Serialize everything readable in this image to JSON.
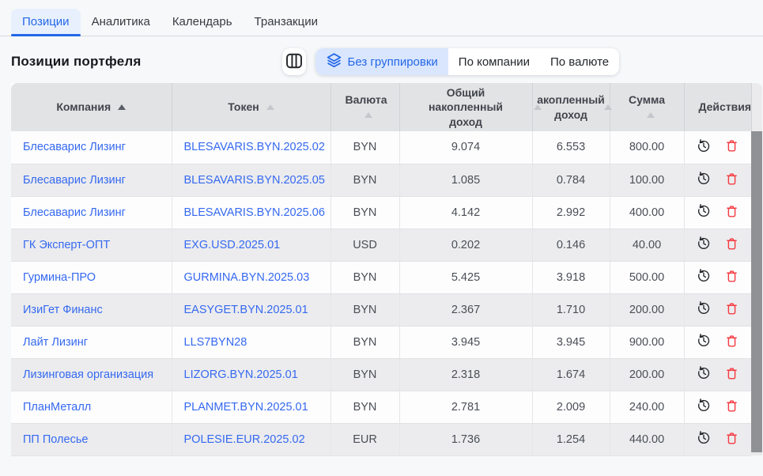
{
  "tabs": [
    {
      "label": "Позиции",
      "active": true
    },
    {
      "label": "Аналитика",
      "active": false
    },
    {
      "label": "Календарь",
      "active": false
    },
    {
      "label": "Транзакции",
      "active": false
    }
  ],
  "toolbar": {
    "title": "Позиции портфеля",
    "columns_button_icon": "columns-icon",
    "grouping": {
      "selected_index": 0,
      "segments": [
        {
          "label": "Без группировки",
          "icon": "layers-icon"
        },
        {
          "label": "По компании"
        },
        {
          "label": "По валюте"
        }
      ]
    }
  },
  "table": {
    "columns": [
      {
        "label": "Компания",
        "sort": "active"
      },
      {
        "label": "Токен",
        "sort": "inactive"
      },
      {
        "label": "Валюта",
        "sort": "inactive"
      },
      {
        "label": "Общий накопленный доход",
        "sort": "inactive"
      },
      {
        "label": "акопленный доход",
        "sort": "inactive"
      },
      {
        "label": "Сумма",
        "sort": "inactive"
      },
      {
        "label": "Действия",
        "sort": null
      }
    ],
    "actions": [
      {
        "name": "history-icon"
      },
      {
        "name": "delete-icon"
      }
    ],
    "rows": [
      {
        "company": "Блесаварис Лизинг",
        "token": "BLESAVARIS.BYN.2025.02",
        "currency": "BYN",
        "total_income": "9.074",
        "income": "6.553",
        "amount": "800.00"
      },
      {
        "company": "Блесаварис Лизинг",
        "token": "BLESAVARIS.BYN.2025.05",
        "currency": "BYN",
        "total_income": "1.085",
        "income": "0.784",
        "amount": "100.00"
      },
      {
        "company": "Блесаварис Лизинг",
        "token": "BLESAVARIS.BYN.2025.06",
        "currency": "BYN",
        "total_income": "4.142",
        "income": "2.992",
        "amount": "400.00"
      },
      {
        "company": "ГК Эксперт-ОПТ",
        "token": "EXG.USD.2025.01",
        "currency": "USD",
        "total_income": "0.202",
        "income": "0.146",
        "amount": "40.00"
      },
      {
        "company": "Гурмина-ПРО",
        "token": "GURMINA.BYN.2025.03",
        "currency": "BYN",
        "total_income": "5.425",
        "income": "3.918",
        "amount": "500.00"
      },
      {
        "company": "ИзиГет Финанс",
        "token": "EASYGET.BYN.2025.01",
        "currency": "BYN",
        "total_income": "2.367",
        "income": "1.710",
        "amount": "200.00"
      },
      {
        "company": "Лайт Лизинг",
        "token": "LLS7BYN28",
        "currency": "BYN",
        "total_income": "3.945",
        "income": "3.945",
        "amount": "900.00"
      },
      {
        "company": "Лизинговая организация",
        "token": "LIZORG.BYN.2025.01",
        "currency": "BYN",
        "total_income": "2.318",
        "income": "1.674",
        "amount": "200.00"
      },
      {
        "company": "ПланМеталл",
        "token": "PLANMET.BYN.2025.01",
        "currency": "BYN",
        "total_income": "2.781",
        "income": "2.009",
        "amount": "240.00"
      },
      {
        "company": "ПП Полесье",
        "token": "POLESIE.EUR.2025.02",
        "currency": "EUR",
        "total_income": "1.736",
        "income": "1.254",
        "amount": "440.00"
      }
    ]
  },
  "colors": {
    "accent": "#2467e8",
    "link": "#3569f0",
    "active_tab_bg": "#e8f0fd",
    "segment_active_bg": "#d9e6fd",
    "header_bg": "#e2e3e4",
    "row_alt_bg": "#ececee",
    "delete_red": "#f43b42",
    "icon_dark": "#24272b",
    "scrollbar": "#8f9194",
    "page_bg": "#f7f8fa"
  }
}
